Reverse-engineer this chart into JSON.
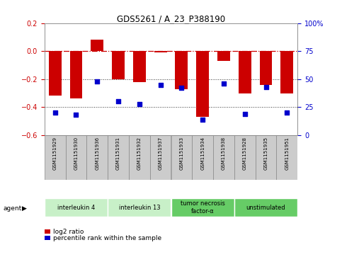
{
  "title": "GDS5261 / A_23_P388190",
  "samples": [
    "GSM1151929",
    "GSM1151930",
    "GSM1151936",
    "GSM1151931",
    "GSM1151932",
    "GSM1151937",
    "GSM1151933",
    "GSM1151934",
    "GSM1151938",
    "GSM1151928",
    "GSM1151935",
    "GSM1151951"
  ],
  "log2_ratio": [
    -0.32,
    -0.34,
    0.08,
    -0.2,
    -0.22,
    -0.01,
    -0.27,
    -0.47,
    -0.07,
    -0.3,
    -0.24,
    -0.3
  ],
  "percentile": [
    20,
    18,
    48,
    30,
    28,
    45,
    42,
    14,
    46,
    19,
    43,
    20
  ],
  "agents": [
    {
      "label": "interleukin 4",
      "start": 0,
      "end": 3,
      "color": "#c8f0c8"
    },
    {
      "label": "interleukin 13",
      "start": 3,
      "end": 6,
      "color": "#c8f0c8"
    },
    {
      "label": "tumor necrosis\nfactor-α",
      "start": 6,
      "end": 9,
      "color": "#66cc66"
    },
    {
      "label": "unstimulated",
      "start": 9,
      "end": 12,
      "color": "#66cc66"
    }
  ],
  "ylim_left": [
    -0.6,
    0.2
  ],
  "ylim_right": [
    0,
    100
  ],
  "yticks_left": [
    -0.6,
    -0.4,
    -0.2,
    0.0,
    0.2
  ],
  "yticks_right": [
    0,
    25,
    50,
    75,
    100
  ],
  "bar_color": "#cc0000",
  "dot_color": "#0000cc",
  "hline_color": "#cc0000",
  "dotted_line_color": "#333333",
  "bg_color": "#ffffff",
  "sample_box_color": "#cccccc",
  "sample_box_border": "#888888",
  "legend_items": [
    "log2 ratio",
    "percentile rank within the sample"
  ],
  "legend_colors": [
    "#cc0000",
    "#0000cc"
  ]
}
